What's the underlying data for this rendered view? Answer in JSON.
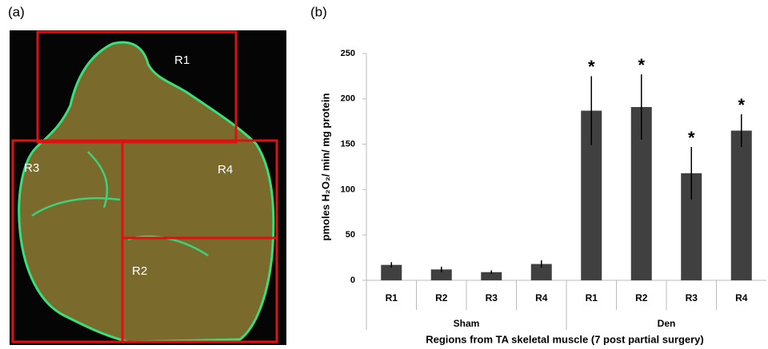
{
  "panel_a": {
    "label": "(a)",
    "regions": [
      "R1",
      "R3",
      "R4",
      "R2"
    ]
  },
  "chart_data": {
    "type": "bar",
    "panel_label": "(b)",
    "y_label": "pmoles H₂O₂/ min/ mg protein",
    "x_label": "Regions from TA skeletal muscle (7 post partial surgery)",
    "categories": [
      "R1",
      "R2",
      "R3",
      "R4",
      "R1",
      "R2",
      "R3",
      "R4"
    ],
    "groups": [
      {
        "name": "Sham",
        "size": 4
      },
      {
        "name": "Den",
        "size": 4
      }
    ],
    "values": [
      17,
      12,
      9,
      18,
      187,
      191,
      118,
      165
    ],
    "errors": [
      3,
      3,
      2,
      4,
      38,
      36,
      29,
      18
    ],
    "significance": [
      null,
      null,
      null,
      null,
      "*",
      "*",
      "*",
      "*"
    ],
    "color": "#404040",
    "error_color": "#000000",
    "ylim": [
      0,
      250
    ],
    "yticks": [
      0,
      50,
      100,
      150,
      200,
      250
    ]
  }
}
